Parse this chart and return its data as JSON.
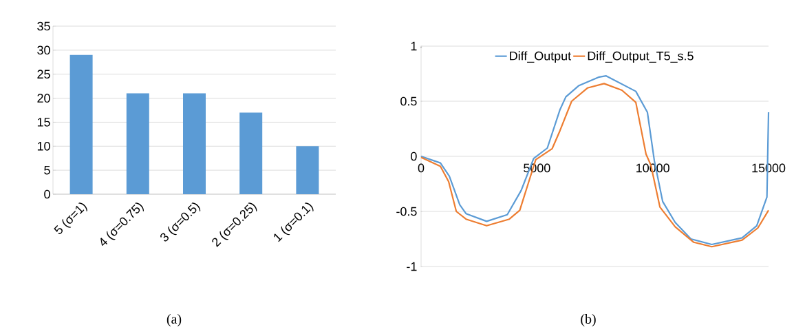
{
  "chart_data": [
    {
      "type": "bar",
      "categories": [
        "5 (σ=1)",
        "4 (σ=0.75)",
        "3 (σ=0.5)",
        "2 (σ=0.25)",
        "1 (σ=0.1)"
      ],
      "values": [
        29,
        21,
        21,
        17,
        10
      ],
      "color": "#5b9bd5",
      "ylim": [
        0,
        35
      ],
      "yticks": [
        0,
        5,
        10,
        15,
        20,
        25,
        30,
        35
      ],
      "grid": "y",
      "annotations": [
        "(a)"
      ]
    },
    {
      "type": "line",
      "xlim": [
        0,
        15000
      ],
      "ylim": [
        -1,
        1
      ],
      "xticks": [
        0,
        5000,
        10000,
        15000
      ],
      "yticks": [
        -1,
        -0.5,
        0,
        0.5,
        1
      ],
      "grid": "y",
      "legend": "top",
      "marker": "none",
      "line_style": "solid",
      "annotations": [
        "(b)"
      ],
      "series": [
        {
          "name": "Diff_Output",
          "color": "#5b9bd5",
          "x": [
            0,
            834,
            1220,
            1670,
            1940,
            2830,
            3720,
            4320,
            4860,
            5450,
            5990,
            6250,
            6800,
            7690,
            7990,
            9270,
            9770,
            10070,
            10430,
            10970,
            11650,
            12550,
            13860,
            14490,
            14930,
            15000
          ],
          "values": [
            0,
            -0.06,
            -0.18,
            -0.44,
            -0.52,
            -0.59,
            -0.53,
            -0.31,
            -0.02,
            0.075,
            0.42,
            0.54,
            0.64,
            0.72,
            0.73,
            0.59,
            0.4,
            -0.04,
            -0.41,
            -0.6,
            -0.75,
            -0.8,
            -0.74,
            -0.63,
            -0.37,
            0.4
          ]
        },
        {
          "name": "Diff_Output_T5_s.5",
          "color": "#ed7d31",
          "x": [
            0,
            834,
            1190,
            1520,
            1940,
            2830,
            3810,
            4260,
            4620,
            4950,
            5660,
            5990,
            6500,
            7180,
            7900,
            8670,
            9270,
            9710,
            9920,
            10310,
            10970,
            11770,
            12550,
            13860,
            14540,
            15000
          ],
          "values": [
            -0.01,
            -0.09,
            -0.23,
            -0.5,
            -0.57,
            -0.63,
            -0.57,
            -0.49,
            -0.25,
            -0.03,
            0.07,
            0.23,
            0.5,
            0.62,
            0.66,
            0.6,
            0.49,
            0.02,
            -0.08,
            -0.46,
            -0.64,
            -0.78,
            -0.82,
            -0.76,
            -0.65,
            -0.49
          ]
        }
      ]
    }
  ]
}
